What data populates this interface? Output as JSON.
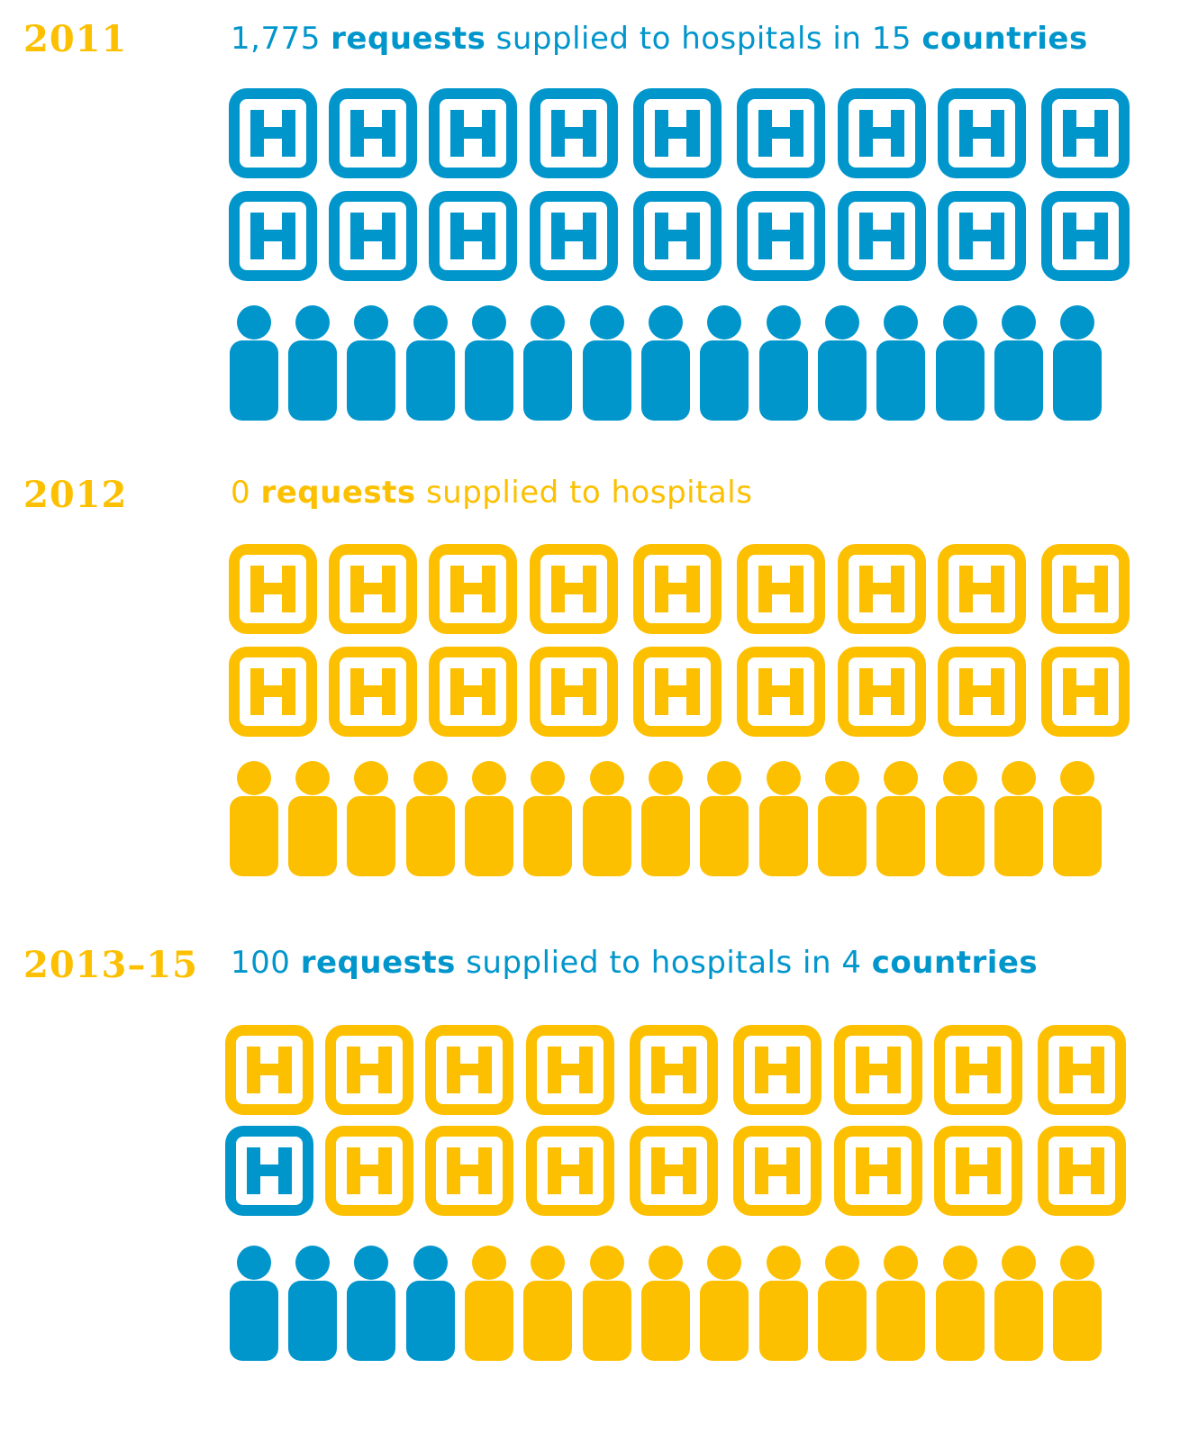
{
  "colors": {
    "blue": "#0096cc",
    "yellow": "#fcc000",
    "white": "#ffffff"
  },
  "sections": [
    {
      "year": "2011",
      "headline": {
        "number": "1,775",
        "bold1": "requests",
        "middle": "supplied to hospitals in",
        "count": "15",
        "bold2": "countries"
      },
      "text_color": "#0096cc",
      "hospitals_row1": [
        "blue",
        "blue",
        "blue",
        "blue",
        "blue",
        "blue",
        "blue",
        "blue",
        "blue"
      ],
      "hospitals_row2": [
        "blue",
        "blue",
        "blue",
        "blue",
        "blue",
        "blue",
        "blue",
        "blue",
        "blue"
      ],
      "people": [
        "blue",
        "blue",
        "blue",
        "blue",
        "blue",
        "blue",
        "blue",
        "blue",
        "blue",
        "blue",
        "blue",
        "blue",
        "blue",
        "blue",
        "blue"
      ]
    },
    {
      "year": "2012",
      "headline": {
        "number": "0",
        "bold1": "requests",
        "middle": "supplied to hospitals",
        "count": "",
        "bold2": ""
      },
      "text_color": "#fcc000",
      "hospitals_row1": [
        "yellow",
        "yellow",
        "yellow",
        "yellow",
        "yellow",
        "yellow",
        "yellow",
        "yellow",
        "yellow"
      ],
      "hospitals_row2": [
        "yellow",
        "yellow",
        "yellow",
        "yellow",
        "yellow",
        "yellow",
        "yellow",
        "yellow",
        "yellow"
      ],
      "people": [
        "yellow",
        "yellow",
        "yellow",
        "yellow",
        "yellow",
        "yellow",
        "yellow",
        "yellow",
        "yellow",
        "yellow",
        "yellow",
        "yellow",
        "yellow",
        "yellow",
        "yellow"
      ]
    },
    {
      "year": "2013–15",
      "headline": {
        "number": "100",
        "bold1": "requests",
        "middle": "supplied to hospitals in",
        "count": "4",
        "bold2": "countries"
      },
      "text_color": "#0096cc",
      "hospitals_row1": [
        "yellow",
        "yellow",
        "yellow",
        "yellow",
        "yellow",
        "yellow",
        "yellow",
        "yellow",
        "yellow"
      ],
      "hospitals_row2": [
        "blue",
        "yellow",
        "yellow",
        "yellow",
        "yellow",
        "yellow",
        "yellow",
        "yellow",
        "yellow"
      ],
      "people": [
        "blue",
        "blue",
        "blue",
        "blue",
        "yellow",
        "yellow",
        "yellow",
        "yellow",
        "yellow",
        "yellow",
        "yellow",
        "yellow",
        "yellow",
        "yellow",
        "yellow"
      ]
    }
  ]
}
